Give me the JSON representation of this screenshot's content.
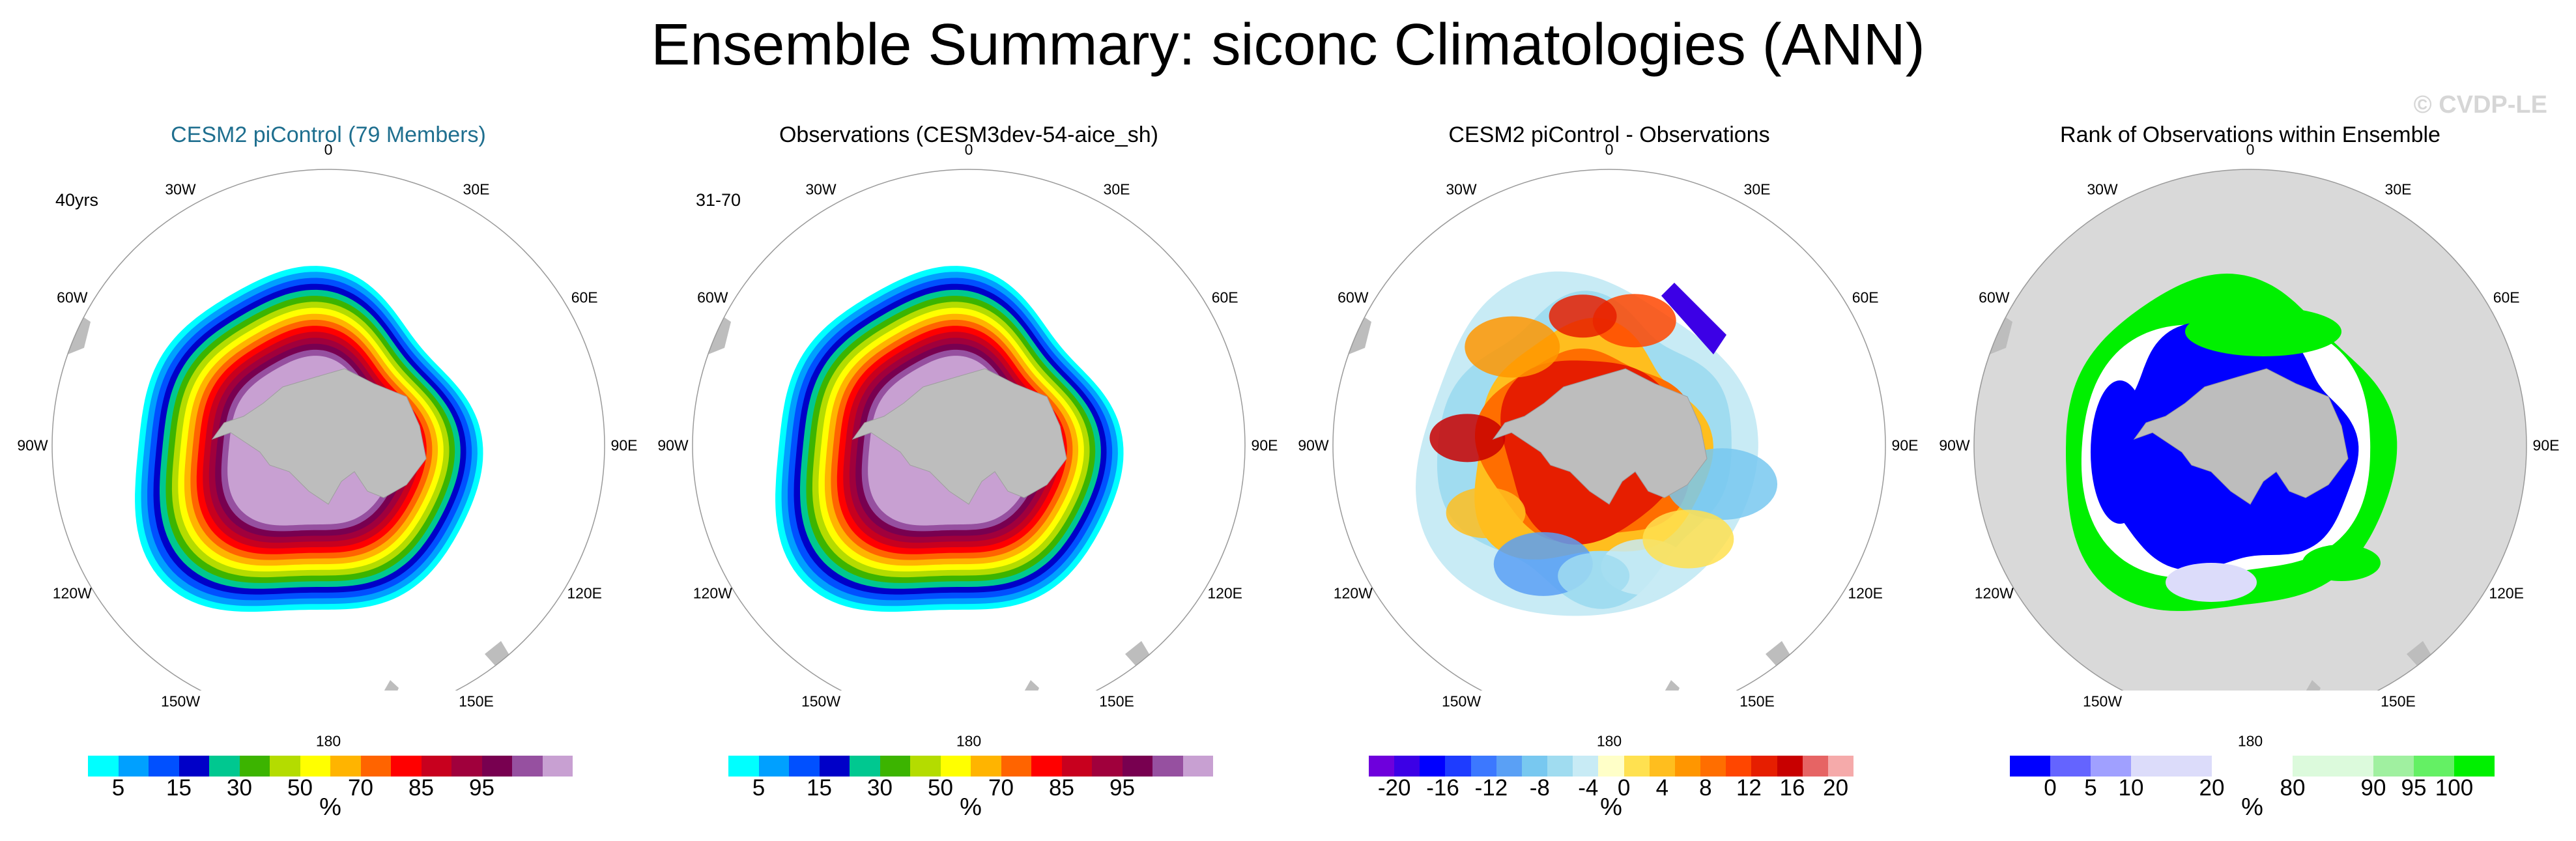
{
  "title": "Ensemble Summary: siconc Climatologies (ANN)",
  "watermark": "© CVDP-LE",
  "longitude_labels": [
    "0",
    "30E",
    "60E",
    "90E",
    "120E",
    "150E",
    "180",
    "150W",
    "120W",
    "90W",
    "60W",
    "30W"
  ],
  "panels": [
    {
      "id": "cesm2",
      "title": "CESM2 piControl (79 Members)",
      "title_color": "#1f6f8f",
      "period": "40yrs",
      "unit": "%",
      "field": "siconc_model",
      "colorbar": [
        "#00ffff",
        "#00a0ff",
        "#0050ff",
        "#0000c8",
        "#00c890",
        "#3cb400",
        "#b4dc00",
        "#ffff00",
        "#ffb400",
        "#ff6400",
        "#ff0000",
        "#c8001e",
        "#a0003c",
        "#780050",
        "#9650a0",
        "#c8a0d2"
      ],
      "tick_labels": [
        "5",
        "15",
        "30",
        "50",
        "70",
        "85",
        "95"
      ],
      "tick_positions": [
        1,
        3,
        5,
        7,
        9,
        11,
        13
      ]
    },
    {
      "id": "obs",
      "title": "Observations (CESM3dev-54-aice_sh)",
      "title_color": "#000000",
      "period": "31-70",
      "unit": "%",
      "field": "siconc_obs",
      "colorbar": [
        "#00ffff",
        "#00a0ff",
        "#0050ff",
        "#0000c8",
        "#00c890",
        "#3cb400",
        "#b4dc00",
        "#ffff00",
        "#ffb400",
        "#ff6400",
        "#ff0000",
        "#c8001e",
        "#a0003c",
        "#780050",
        "#9650a0",
        "#c8a0d2"
      ],
      "tick_labels": [
        "5",
        "15",
        "30",
        "50",
        "70",
        "85",
        "95"
      ],
      "tick_positions": [
        1,
        3,
        5,
        7,
        9,
        11,
        13
      ]
    },
    {
      "id": "diff",
      "title": "CESM2 piControl - Observations",
      "title_color": "#000000",
      "period": "",
      "unit": "%",
      "field": "siconc_diff",
      "colorbar": [
        "#6e00dc",
        "#3c00e6",
        "#0000ff",
        "#1e3cff",
        "#3c78ff",
        "#5aa0f5",
        "#78c8f0",
        "#a0dcf0",
        "#c8ebf5",
        "#ffffc8",
        "#ffe150",
        "#ffbe1e",
        "#ff9600",
        "#ff6e00",
        "#ff4600",
        "#e61e00",
        "#c80000",
        "#e66464",
        "#f5aaaa"
      ],
      "tick_labels": [
        "-20",
        "-16",
        "-12",
        "-8",
        "-4",
        "0",
        "4",
        "8",
        "12",
        "16",
        "20"
      ],
      "tick_positions": [
        1,
        2.9,
        4.8,
        6.7,
        8.6,
        10,
        11.5,
        13.2,
        14.9,
        16.6,
        18.3
      ]
    },
    {
      "id": "rank",
      "title": "Rank of Observations within Ensemble",
      "title_color": "#000000",
      "period": "",
      "unit": "%",
      "field": "rank",
      "colorbar": [
        "#0000ff",
        "#6464ff",
        "#a0a0ff",
        "#dcdcfa",
        "#dcdcfa",
        "#ffffff",
        "#ffffff",
        "#dcfadc",
        "#dcfadc",
        "#a0f0a0",
        "#64f064",
        "#00f000"
      ],
      "tick_labels": [
        "0",
        "5",
        "10",
        "20",
        "80",
        "90",
        "95",
        "100"
      ],
      "tick_positions": [
        1,
        2,
        3,
        5,
        7,
        9,
        10,
        11
      ]
    }
  ],
  "chart_data": [
    {
      "type": "heatmap",
      "title": "CESM2 piControl (79 Members)",
      "projection": "south polar stereographic",
      "variable": "siconc",
      "units": "%",
      "levels": [
        5,
        10,
        15,
        20,
        30,
        40,
        50,
        60,
        70,
        80,
        85,
        90,
        95,
        99,
        100
      ],
      "ice_edge_band_values": [
        5,
        15,
        30,
        50,
        70,
        85,
        95
      ]
    },
    {
      "type": "heatmap",
      "title": "Observations (CESM3dev-54-aice_sh)",
      "projection": "south polar stereographic",
      "variable": "siconc",
      "units": "%",
      "levels": [
        5,
        10,
        15,
        20,
        30,
        40,
        50,
        60,
        70,
        80,
        85,
        90,
        95,
        99,
        100
      ]
    },
    {
      "type": "heatmap",
      "title": "CESM2 piControl - Observations",
      "projection": "south polar stereographic",
      "variable": "siconc difference",
      "units": "%",
      "levels": [
        -20,
        -18,
        -16,
        -14,
        -12,
        -10,
        -8,
        -6,
        -4,
        -2,
        0,
        2,
        4,
        6,
        8,
        10,
        12,
        14,
        16,
        18,
        20
      ]
    },
    {
      "type": "heatmap",
      "title": "Rank of Observations within Ensemble",
      "projection": "south polar stereographic",
      "variable": "rank",
      "units": "%",
      "levels": [
        0,
        5,
        10,
        20,
        80,
        90,
        95,
        100
      ]
    }
  ]
}
